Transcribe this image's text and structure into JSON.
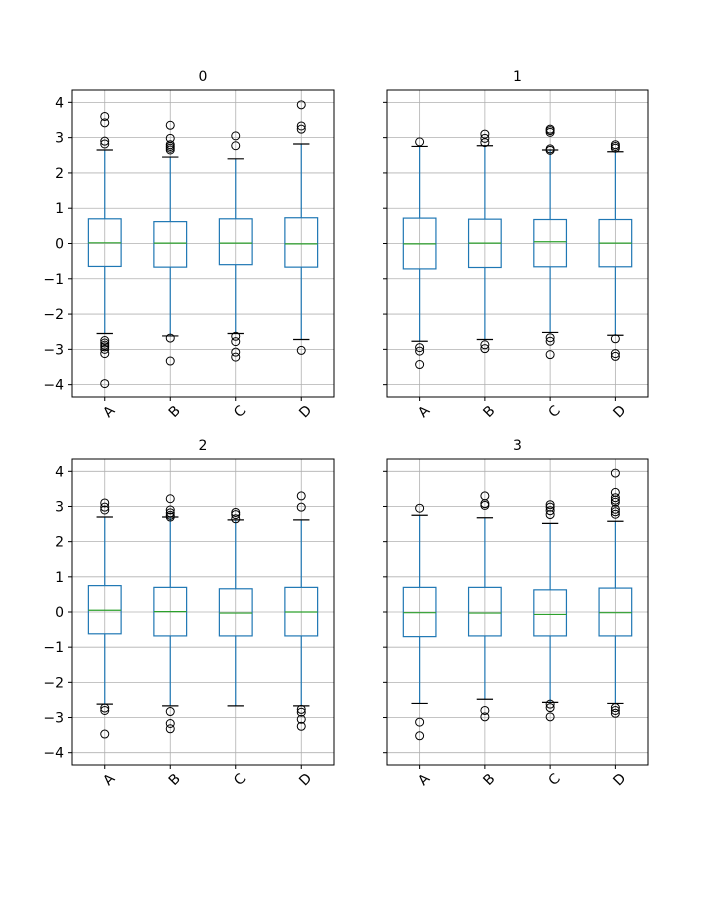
{
  "chart_data": [
    {
      "type": "box",
      "title": "0",
      "categories": [
        "A",
        "B",
        "C",
        "D"
      ],
      "ylim": [
        -4.35,
        4.35
      ],
      "yticks": [
        -4,
        -3,
        -2,
        -1,
        0,
        1,
        2,
        3,
        4
      ],
      "ytick_labels": [
        "−4",
        "−3",
        "−2",
        "−1",
        "0",
        "1",
        "2",
        "3",
        "4"
      ],
      "grid": true,
      "boxes": [
        {
          "name": "A",
          "whislo": -2.55,
          "q1": -0.65,
          "med": 0.02,
          "q3": 0.7,
          "whishi": 2.65,
          "fliers": [
            3.6,
            3.42,
            2.9,
            2.82,
            -2.75,
            -2.82,
            -2.88,
            -2.93,
            -3.0,
            -3.12,
            -3.97
          ]
        },
        {
          "name": "B",
          "whislo": -2.62,
          "q1": -0.67,
          "med": 0.01,
          "q3": 0.62,
          "whishi": 2.45,
          "fliers": [
            3.35,
            2.98,
            2.8,
            2.75,
            2.7,
            2.65,
            -2.68,
            -3.33
          ]
        },
        {
          "name": "C",
          "whislo": -2.55,
          "q1": -0.6,
          "med": 0.01,
          "q3": 0.7,
          "whishi": 2.4,
          "fliers": [
            3.05,
            2.77,
            -2.63,
            -2.78,
            -3.08,
            -3.22
          ]
        },
        {
          "name": "D",
          "whislo": -2.72,
          "q1": -0.67,
          "med": -0.01,
          "q3": 0.73,
          "whishi": 2.82,
          "fliers": [
            3.93,
            3.33,
            3.24,
            -3.03
          ]
        }
      ]
    },
    {
      "type": "box",
      "title": "1",
      "categories": [
        "A",
        "B",
        "C",
        "D"
      ],
      "ylim": [
        -4.35,
        4.35
      ],
      "yticks": [
        -4,
        -3,
        -2,
        -1,
        0,
        1,
        2,
        3,
        4
      ],
      "grid": true,
      "boxes": [
        {
          "name": "A",
          "whislo": -2.77,
          "q1": -0.72,
          "med": -0.01,
          "q3": 0.72,
          "whishi": 2.75,
          "fliers": [
            2.88,
            -2.95,
            -3.05,
            -3.43
          ]
        },
        {
          "name": "B",
          "whislo": -2.72,
          "q1": -0.68,
          "med": 0.01,
          "q3": 0.69,
          "whishi": 2.77,
          "fliers": [
            3.1,
            2.98,
            2.86,
            -2.87,
            -2.98
          ]
        },
        {
          "name": "C",
          "whislo": -2.52,
          "q1": -0.66,
          "med": 0.05,
          "q3": 0.68,
          "whishi": 2.65,
          "fliers": [
            3.24,
            3.2,
            3.15,
            2.68,
            2.64,
            -2.67,
            -2.77,
            -3.15
          ]
        },
        {
          "name": "D",
          "whislo": -2.6,
          "q1": -0.66,
          "med": 0.01,
          "q3": 0.68,
          "whishi": 2.6,
          "fliers": [
            2.8,
            2.75,
            2.7,
            -2.7,
            -3.12,
            -3.2
          ]
        }
      ]
    },
    {
      "type": "box",
      "title": "2",
      "categories": [
        "A",
        "B",
        "C",
        "D"
      ],
      "ylim": [
        -4.35,
        4.35
      ],
      "yticks": [
        -4,
        -3,
        -2,
        -1,
        0,
        1,
        2,
        3,
        4
      ],
      "ytick_labels": [
        "−4",
        "−3",
        "−2",
        "−1",
        "0",
        "1",
        "2",
        "3",
        "4"
      ],
      "grid": true,
      "boxes": [
        {
          "name": "A",
          "whislo": -2.62,
          "q1": -0.62,
          "med": 0.05,
          "q3": 0.75,
          "whishi": 2.7,
          "fliers": [
            3.1,
            2.98,
            2.9,
            -2.73,
            -2.8,
            -3.47
          ]
        },
        {
          "name": "B",
          "whislo": -2.67,
          "q1": -0.68,
          "med": 0.01,
          "q3": 0.7,
          "whishi": 2.7,
          "fliers": [
            3.22,
            2.9,
            2.82,
            2.75,
            2.7,
            -2.83,
            -3.17,
            -3.32
          ]
        },
        {
          "name": "C",
          "whislo": -2.67,
          "q1": -0.68,
          "med": -0.03,
          "q3": 0.66,
          "whishi": 2.62,
          "fliers": [
            2.83,
            2.77,
            2.65
          ]
        },
        {
          "name": "D",
          "whislo": -2.67,
          "q1": -0.68,
          "med": 0.0,
          "q3": 0.7,
          "whishi": 2.62,
          "fliers": [
            3.3,
            2.98,
            -2.77,
            -2.85,
            -3.05,
            -3.25
          ]
        }
      ]
    },
    {
      "type": "box",
      "title": "3",
      "categories": [
        "A",
        "B",
        "C",
        "D"
      ],
      "ylim": [
        -4.35,
        4.35
      ],
      "yticks": [
        -4,
        -3,
        -2,
        -1,
        0,
        1,
        2,
        3,
        4
      ],
      "grid": true,
      "boxes": [
        {
          "name": "A",
          "whislo": -2.6,
          "q1": -0.7,
          "med": -0.02,
          "q3": 0.7,
          "whishi": 2.75,
          "fliers": [
            2.95,
            -3.13,
            -3.52
          ]
        },
        {
          "name": "B",
          "whislo": -2.48,
          "q1": -0.68,
          "med": -0.03,
          "q3": 0.7,
          "whishi": 2.68,
          "fliers": [
            3.3,
            3.08,
            3.03,
            -2.8,
            -2.98
          ]
        },
        {
          "name": "C",
          "whislo": -2.57,
          "q1": -0.68,
          "med": -0.07,
          "q3": 0.63,
          "whishi": 2.52,
          "fliers": [
            3.05,
            2.98,
            2.88,
            2.77,
            -2.62,
            -2.72,
            -2.98
          ]
        },
        {
          "name": "D",
          "whislo": -2.6,
          "q1": -0.68,
          "med": -0.02,
          "q3": 0.68,
          "whishi": 2.58,
          "fliers": [
            3.95,
            3.4,
            3.25,
            3.18,
            3.12,
            2.92,
            2.85,
            2.78,
            -2.72,
            -2.8,
            -2.88
          ]
        }
      ]
    }
  ],
  "colors": {
    "box": "#1f77b4",
    "median": "#2ca02c",
    "grid": "#b0b0b0",
    "flier": "#000000"
  }
}
